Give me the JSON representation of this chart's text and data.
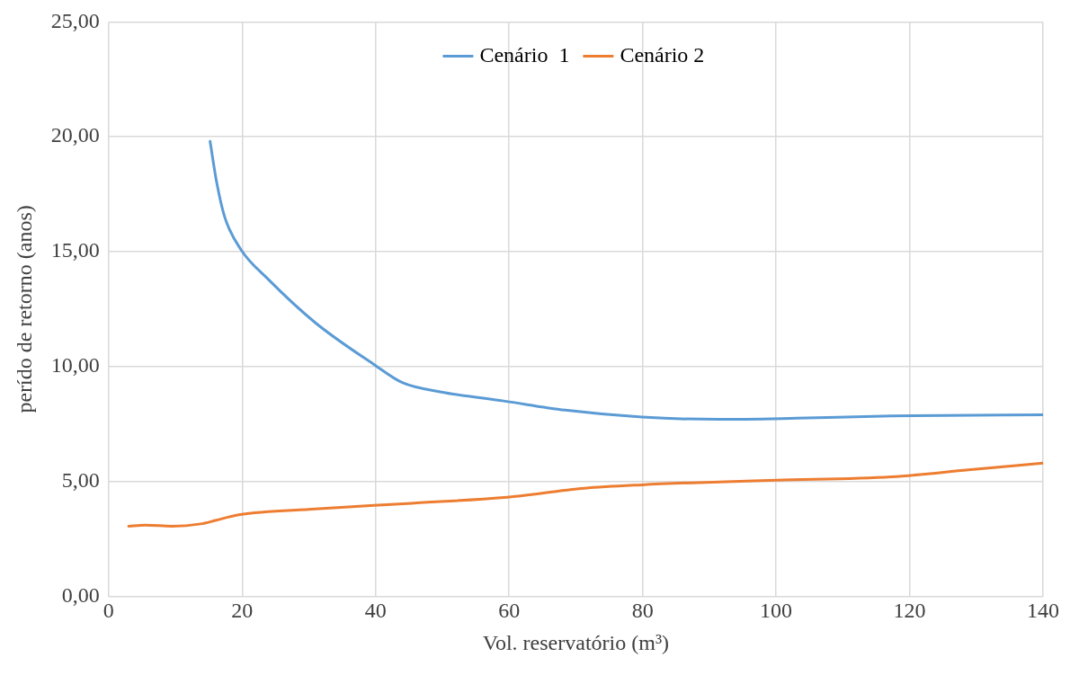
{
  "chart_data": {
    "type": "line",
    "xlabel": "Vol. reservatório (m³)",
    "ylabel": "perído de retorno (anos)",
    "xlim": [
      0,
      140
    ],
    "xticks": [
      0,
      20,
      40,
      60,
      80,
      100,
      120,
      140
    ],
    "ylim": [
      0,
      25
    ],
    "yticks": [
      {
        "value": 0,
        "label": "0,00"
      },
      {
        "value": 5,
        "label": "5,00"
      },
      {
        "value": 10,
        "label": "10,00"
      },
      {
        "value": 15,
        "label": "15,00"
      },
      {
        "value": 20,
        "label": "20,00"
      },
      {
        "value": 25,
        "label": "25,00"
      }
    ],
    "grid": true,
    "legend": "top",
    "marker": "none",
    "line_style": "solid",
    "series": [
      {
        "name": "Cenário  1",
        "color": "#5b9bd5",
        "x": [
          15.2,
          16.2,
          17.4,
          19.8,
          23.9,
          31,
          39.7,
          44,
          49.7,
          59.2,
          68.4,
          79.9,
          91.4,
          103,
          117.3,
          140
        ],
        "values": [
          19.8,
          18.0,
          16.5,
          15.1,
          13.8,
          11.9,
          10.1,
          9.3,
          8.9,
          8.5,
          8.1,
          7.8,
          7.7,
          7.75,
          7.85,
          7.9
        ]
      },
      {
        "name": "Cenário 2",
        "color": "#ed7d31",
        "x": [
          3,
          5.5,
          9.5,
          13.8,
          16,
          19.5,
          31,
          45.4,
          59.2,
          71.3,
          79.9,
          88.5,
          100,
          117.3,
          128.8,
          140
        ],
        "values": [
          3.05,
          3.1,
          3.05,
          3.15,
          3.3,
          3.55,
          3.8,
          4.05,
          4.3,
          4.7,
          4.85,
          4.95,
          5.05,
          5.2,
          5.5,
          5.8
        ]
      }
    ]
  }
}
